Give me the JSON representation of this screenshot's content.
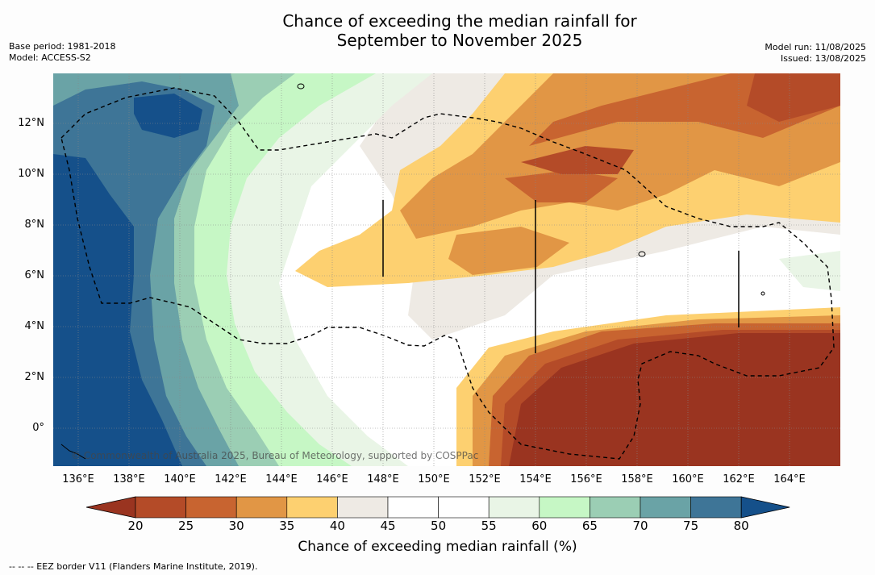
{
  "title_line1": "Chance of exceeding the median rainfall for",
  "title_line2": "September to November 2025",
  "base_period": "Base period: 1981-2018",
  "model": "Model: ACCESS-S2",
  "model_run": "Model run: 11/08/2025",
  "issued": "Issued: 13/08/2025",
  "copyright": "© Commonwealth of Australia 2025, Bureau of Meteorology, supported by COSPPac",
  "lat_labels": [
    "12°N",
    "10°N",
    "8°N",
    "6°N",
    "4°N",
    "2°N",
    "0°"
  ],
  "lon_labels": [
    "136°E",
    "138°E",
    "140°E",
    "142°E",
    "144°E",
    "146°E",
    "148°E",
    "150°E",
    "152°E",
    "154°E",
    "156°E",
    "158°E",
    "160°E",
    "162°E",
    "164°E"
  ],
  "colorbar": {
    "ticks": [
      "20",
      "25",
      "30",
      "35",
      "40",
      "45",
      "50",
      "55",
      "60",
      "65",
      "70",
      "75",
      "80"
    ],
    "colors": [
      "#9a3420",
      "#b44b28",
      "#c86430",
      "#e19645",
      "#fdd070",
      "#eeeae4",
      "#ffffff",
      "#ffffff",
      "#e9f5e6",
      "#c6f7c5",
      "#9bceb4",
      "#6aa3a6",
      "#3e7597",
      "#15508a"
    ],
    "title": "Chance of exceeding median rainfall (%)"
  },
  "footnote": "--  --  -- EEZ border V11 (Flanders Marine Institute, 2019)."
}
